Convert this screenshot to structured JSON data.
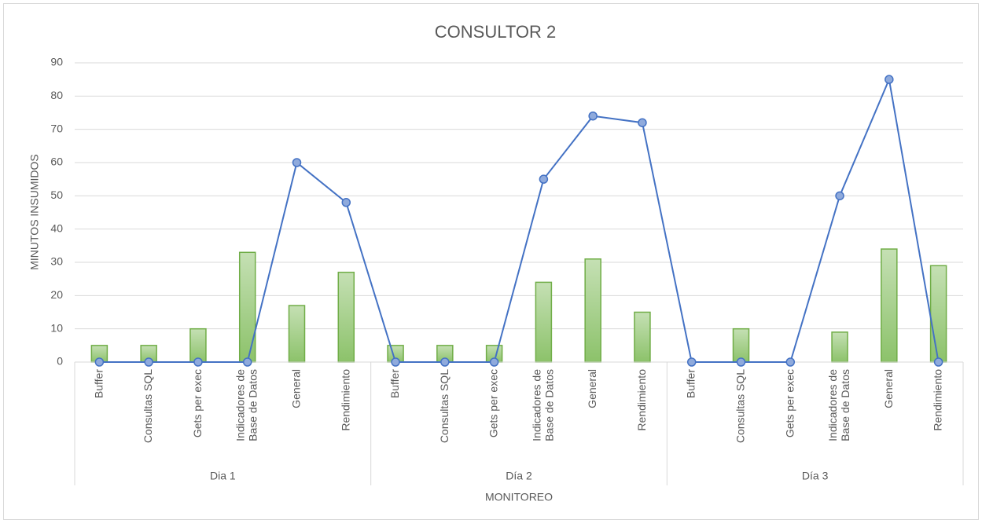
{
  "chart_data": {
    "type": "combo",
    "title": "CONSULTOR  2",
    "y_label": "MINUTOS INSUMIDOS",
    "x_label": "MONITOREO",
    "groups": [
      {
        "label": "Dia 1",
        "categories": [
          "Buffer",
          "Consultas SQL",
          "Gets per exec",
          "Indicadores de Base de Datos",
          "General",
          "Rendimiento"
        ]
      },
      {
        "label": "Día 2",
        "categories": [
          "Buffer",
          "Consultas SQL",
          "Gets per exec",
          "Indicadores de Base de Datos",
          "General",
          "Rendimiento"
        ]
      },
      {
        "label": "Día 3",
        "categories": [
          "Buffer",
          "Consultas SQL",
          "Gets per exec",
          "Indicadores de Base de Datos",
          "General",
          "Rendimiento"
        ]
      }
    ],
    "series": [
      {
        "type": "bar",
        "color": "#70ad47",
        "values": [
          [
            5,
            5,
            10,
            33,
            17,
            27
          ],
          [
            5,
            5,
            5,
            24,
            31,
            15
          ],
          [
            0,
            10,
            0,
            9,
            34,
            29
          ]
        ]
      },
      {
        "type": "line",
        "color": "#4472c4",
        "values": [
          [
            0,
            0,
            0,
            0,
            60,
            48
          ],
          [
            0,
            0,
            0,
            55,
            74,
            72
          ],
          [
            0,
            0,
            0,
            50,
            85,
            0
          ]
        ]
      }
    ],
    "ylim": [
      0,
      90
    ],
    "yticks": [
      0,
      10,
      20,
      30,
      40,
      50,
      60,
      70,
      80,
      90
    ],
    "grid": true
  }
}
